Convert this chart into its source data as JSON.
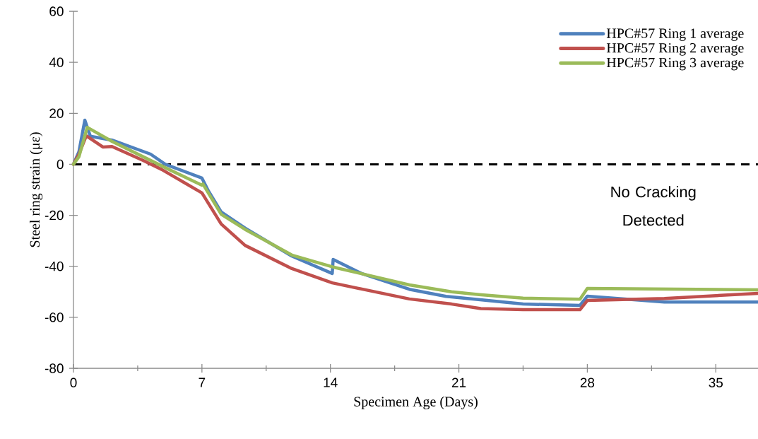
{
  "chart_data": {
    "type": "line",
    "xlabel": "Specimen Age (Days)",
    "ylabel": "Steel ring strain (με)",
    "xlim": [
      0,
      37.3
    ],
    "ylim": [
      -80,
      60
    ],
    "xticks": [
      0,
      {
        "value": 3.5,
        "label": null
      },
      7,
      {
        "value": 10.5,
        "label": null
      },
      14,
      {
        "value": 17.5,
        "label": null
      },
      21,
      {
        "value": 24.5,
        "label": null
      },
      28,
      {
        "value": 31.5,
        "label": null
      },
      35
    ],
    "yticks": [
      -80,
      -60,
      -40,
      -20,
      0,
      20,
      40,
      60
    ],
    "legend": "top right",
    "marker": "none",
    "line_style": "solid",
    "grid": false,
    "ref_lines": [
      {
        "axis": "y",
        "value": 0,
        "color": "#000000",
        "line_style": "dashed"
      }
    ],
    "annotations": [
      "No Cracking Detected"
    ],
    "series": [
      {
        "name": "HPC#57 Ring 1 average",
        "color": "#4f81bd",
        "x": [
          0,
          0.3,
          0.62,
          0.92,
          2.1,
          4.2,
          5.0,
          7.0,
          7.35,
          8.05,
          9.35,
          11.9,
          14.1,
          14.15,
          15.7,
          18.3,
          20.3,
          20.6,
          24.5,
          27.6,
          28.0,
          32.2,
          37.3
        ],
        "values": [
          0,
          5,
          17.3,
          11,
          9.5,
          4,
          0,
          -5.4,
          -10.4,
          -18.7,
          -25,
          -36,
          -42.8,
          -37.3,
          -42.8,
          -49,
          -51.8,
          -52,
          -54.8,
          -55.3,
          -51.7,
          -54,
          -54
        ]
      },
      {
        "name": "HPC#57 Ring 2 average",
        "color": "#c0504d",
        "x": [
          0,
          0.3,
          0.7,
          1.6,
          2.1,
          3.8,
          4.8,
          7.0,
          8.05,
          9.35,
          11.9,
          14.1,
          18.3,
          20.6,
          22.2,
          24.5,
          27.6,
          28.0,
          32.2,
          37.3
        ],
        "values": [
          0,
          4,
          11.2,
          6.8,
          7,
          1.5,
          -2,
          -11.2,
          -23.4,
          -31.8,
          -40.9,
          -46.5,
          -52.8,
          -54.8,
          -56.6,
          -57,
          -57,
          -53.4,
          -52.6,
          -50.6
        ]
      },
      {
        "name": "HPC#57 Ring 3 average",
        "color": "#9bbb59",
        "x": [
          0,
          0.3,
          0.75,
          2.1,
          5.0,
          7.0,
          7.05,
          8.05,
          9.35,
          11.9,
          14.1,
          18.3,
          20.6,
          22.1,
          24.5,
          27.6,
          28.0,
          37.3
        ],
        "values": [
          0,
          3,
          14.5,
          9,
          -1.3,
          -8.2,
          -7.7,
          -19.6,
          -25.5,
          -35.6,
          -40.2,
          -47.3,
          -50,
          -51.1,
          -52.5,
          -52.9,
          -48.7,
          -49.2
        ]
      }
    ]
  }
}
